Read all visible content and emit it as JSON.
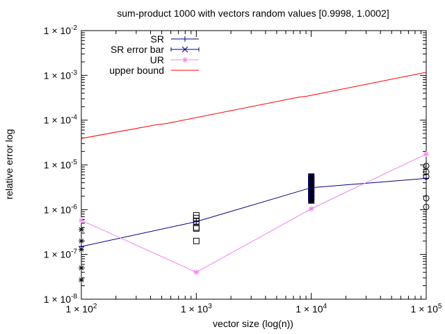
{
  "chart_data": {
    "type": "line",
    "title": "sum-product 1000 with vectors random values [0.9998, 1.0002]",
    "xlabel": "vector size (log(n))",
    "ylabel": "relative error log",
    "x_scale": "log",
    "y_scale": "log",
    "xlim": [
      100,
      100000
    ],
    "ylim": [
      1e-08,
      0.01
    ],
    "grid": false,
    "legend_position": "top-left",
    "x_ticks": [
      {
        "value": 100,
        "mantissa": "1 × 10",
        "exponent": "2"
      },
      {
        "value": 1000,
        "mantissa": "1 × 10",
        "exponent": "3"
      },
      {
        "value": 10000,
        "mantissa": "1 × 10",
        "exponent": "4"
      },
      {
        "value": 100000,
        "mantissa": "1 × 10",
        "exponent": "5"
      }
    ],
    "y_ticks": [
      {
        "value": 1e-08,
        "mantissa": "1 × 10",
        "exponent": "-8"
      },
      {
        "value": 1e-07,
        "mantissa": "1 × 10",
        "exponent": "-7"
      },
      {
        "value": 1e-06,
        "mantissa": "1 × 10",
        "exponent": "-6"
      },
      {
        "value": 1e-05,
        "mantissa": "1 × 10",
        "exponent": "-5"
      },
      {
        "value": 0.0001,
        "mantissa": "1 × 10",
        "exponent": "-4"
      },
      {
        "value": 0.001,
        "mantissa": "1 × 10",
        "exponent": "-3"
      },
      {
        "value": 0.01,
        "mantissa": "1 × 10",
        "exponent": "-2"
      }
    ],
    "series": [
      {
        "name": "SR",
        "color": "#000080",
        "marker": "plus",
        "x": [
          100,
          1000,
          10000,
          100000
        ],
        "y": [
          1.5e-07,
          5.4e-07,
          3.1e-06,
          5e-06
        ]
      },
      {
        "name": "SR error bar",
        "color": "#000080",
        "marker": "cross",
        "error_bars": [
          {
            "x": 100,
            "low": 1.5e-07,
            "high": 1.5e-07
          },
          {
            "x": 1000,
            "low": 5.4e-07,
            "high": 5.4e-07
          },
          {
            "x": 10000,
            "low": 1.6e-06,
            "high": 5.5e-06
          },
          {
            "x": 100000,
            "low": 5e-06,
            "high": 5e-06
          }
        ]
      },
      {
        "name": "UR",
        "color": "#ee82ee",
        "marker": "star",
        "x": [
          100,
          1000,
          10000,
          100000
        ],
        "y": [
          5.8e-07,
          4e-08,
          1.05e-06,
          1.75e-05
        ]
      },
      {
        "name": "upper bound",
        "color": "#ff0000",
        "marker": "none",
        "x": [
          100,
          466,
          536,
          8000,
          9000,
          100000
        ],
        "y": [
          3.9e-05,
          8e-05,
          8.3e-05,
          0.00033,
          0.00034,
          0.00117
        ]
      }
    ],
    "samples": [
      {
        "marker": "asterisk",
        "color": "#000000",
        "points": [
          {
            "x": 100,
            "y": 3.6e-07
          },
          {
            "x": 100,
            "y": 2e-07
          },
          {
            "x": 100,
            "y": 1.3e-07
          },
          {
            "x": 100,
            "y": 5e-08
          },
          {
            "x": 100,
            "y": 2.7e-08
          }
        ]
      },
      {
        "marker": "square",
        "color": "#000000",
        "points": [
          {
            "x": 1000,
            "y": 7.5e-07
          },
          {
            "x": 1000,
            "y": 6.5e-07
          },
          {
            "x": 1000,
            "y": 5.5e-07
          },
          {
            "x": 1000,
            "y": 4e-07
          },
          {
            "x": 1000,
            "y": 3.8e-07
          },
          {
            "x": 1000,
            "y": 2e-07
          }
        ]
      },
      {
        "marker": "filled-square",
        "color": "#000000",
        "points": [
          {
            "x": 10000,
            "y": 5.5e-06
          },
          {
            "x": 10000,
            "y": 5e-06
          },
          {
            "x": 10000,
            "y": 4.5e-06
          },
          {
            "x": 10000,
            "y": 4e-06
          },
          {
            "x": 10000,
            "y": 3.5e-06
          },
          {
            "x": 10000,
            "y": 3e-06
          },
          {
            "x": 10000,
            "y": 2.6e-06
          },
          {
            "x": 10000,
            "y": 2.2e-06
          },
          {
            "x": 10000,
            "y": 1.9e-06
          },
          {
            "x": 10000,
            "y": 1.6e-06
          }
        ]
      },
      {
        "marker": "circle",
        "color": "#000000",
        "points": [
          {
            "x": 100000,
            "y": 9.5e-06
          },
          {
            "x": 100000,
            "y": 7e-06
          },
          {
            "x": 100000,
            "y": 5.5e-06
          },
          {
            "x": 100000,
            "y": 1.8e-06
          },
          {
            "x": 100000,
            "y": 1.15e-06
          }
        ]
      }
    ]
  }
}
